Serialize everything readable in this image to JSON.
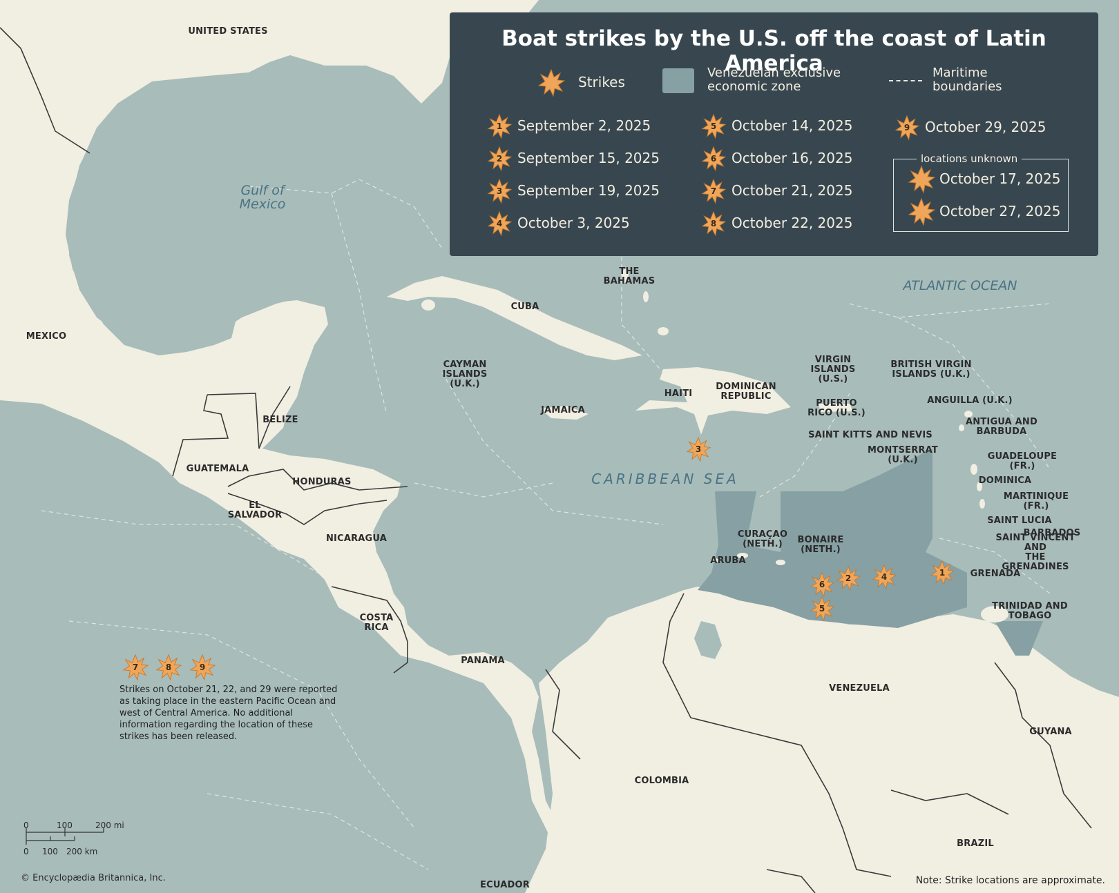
{
  "title": "Boat strikes by the U.S. off the coast of Latin America",
  "legend": {
    "strikes_label": "Strikes",
    "eez_label": "Venezuelan exclusive\neconomic zone",
    "boundary_label": "Maritime\nboundaries",
    "locations_unknown_label": "locations unknown",
    "entries": [
      {
        "num": "1",
        "date": "September 2, 2025"
      },
      {
        "num": "2",
        "date": "September 15, 2025"
      },
      {
        "num": "3",
        "date": "September 19, 2025"
      },
      {
        "num": "4",
        "date": "October 3, 2025"
      },
      {
        "num": "5",
        "date": "October 14, 2025"
      },
      {
        "num": "6",
        "date": "October 16, 2025"
      },
      {
        "num": "7",
        "date": "October 21, 2025"
      },
      {
        "num": "8",
        "date": "October 22, 2025"
      },
      {
        "num": "9",
        "date": "October 29, 2025"
      }
    ],
    "unknown_entries": [
      "October 17, 2025",
      "October 27, 2025"
    ]
  },
  "countries": {
    "united_states": "UNITED STATES",
    "mexico": "MEXICO",
    "belize": "BELIZE",
    "guatemala": "GUATEMALA",
    "honduras": "HONDURAS",
    "el_salvador": "EL\nSALVADOR",
    "nicaragua": "NICARAGUA",
    "costa_rica": "COSTA\nRICA",
    "panama": "PANAMA",
    "cuba": "CUBA",
    "bahamas": "THE\nBAHAMAS",
    "cayman": "CAYMAN\nISLANDS\n(U.K.)",
    "jamaica": "JAMAICA",
    "haiti": "HAITI",
    "dominican_republic": "DOMINICAN\nREPUBLIC",
    "virgin_islands_us": "VIRGIN\nISLANDS\n(U.S.)",
    "british_virgin_islands": "BRITISH VIRGIN\nISLANDS (U.K.)",
    "puerto_rico": "PUERTO\nRICO (U.S.)",
    "anguilla": "ANGUILLA (U.K.)",
    "antigua": "ANTIGUA AND\nBARBUDA",
    "saint_kitts": "SAINT KITTS AND NEVIS",
    "montserrat": "MONTSERRAT\n(U.K.)",
    "guadeloupe": "GUADELOUPE (FR.)",
    "dominica": "DOMINICA",
    "martinique": "MARTINIQUE (FR.)",
    "saint_lucia": "SAINT LUCIA",
    "barbados": "BARBADOS",
    "saint_vincent": "SAINT VINCENT AND\nTHE GRENADINES",
    "grenada": "GRENADA",
    "trinidad": "TRINIDAD AND\nTOBAGO",
    "curacao": "CURAÇAO\n(NETH.)",
    "bonaire": "BONAIRE\n(NETH.)",
    "aruba": "ARUBA",
    "venezuela": "VENEZUELA",
    "guyana": "GUYANA",
    "colombia": "COLOMBIA",
    "brazil": "BRAZIL",
    "ecuador": "ECUADOR"
  },
  "water": {
    "gulf": "Gulf of\nMexico",
    "atlantic": "ATLANTIC OCEAN",
    "caribbean": "CARIBBEAN SEA"
  },
  "map_strikes": [
    "1",
    "2",
    "3",
    "4",
    "5",
    "6"
  ],
  "pacific_strikes": [
    "7",
    "8",
    "9"
  ],
  "pacific_note": "Strikes on October 21, 22, and 29 were reported as taking place in the eastern Pacific Ocean and west of Central America. No additional information regarding the location of these strikes has been released.",
  "scale": {
    "mi_0": "0",
    "mi_100": "100",
    "mi_200": "200 mi",
    "km_0": "0",
    "km_100": "100",
    "km_200": "200 km"
  },
  "credit": "© Encyclopædia Britannica, Inc.",
  "note": "Note: Strike locations are approximate.",
  "colors": {
    "land": "#f1eee2",
    "water": "#a8bcba",
    "eez": "#86a0a4",
    "legend_bg": "#38474f",
    "strike": "#f0a65a"
  }
}
